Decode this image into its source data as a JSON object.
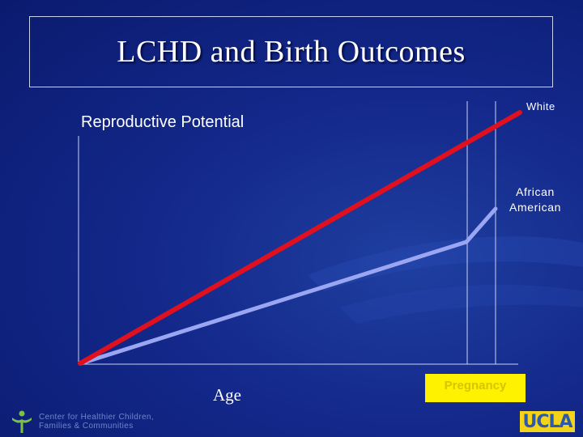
{
  "slide": {
    "title": "LCHD and Birth Outcomes"
  },
  "diagram": {
    "y_axis_label": "Reproductive Potential",
    "x_axis_label": "Age",
    "pregnancy_label": "Pregnancy",
    "series_white_label": "White",
    "series_african_american_label_line1": "African",
    "series_african_american_label_line2": "American",
    "colors": {
      "white_line": "#e0101e",
      "african_american_line": "#9aa6f2",
      "axis": "#c9d2ee",
      "pregnancy_box": "#fff200"
    }
  },
  "footer": {
    "org_line1": "Center for Healthier Children,",
    "org_line2": "Families & Communities",
    "logo_text": "UCLA"
  }
}
